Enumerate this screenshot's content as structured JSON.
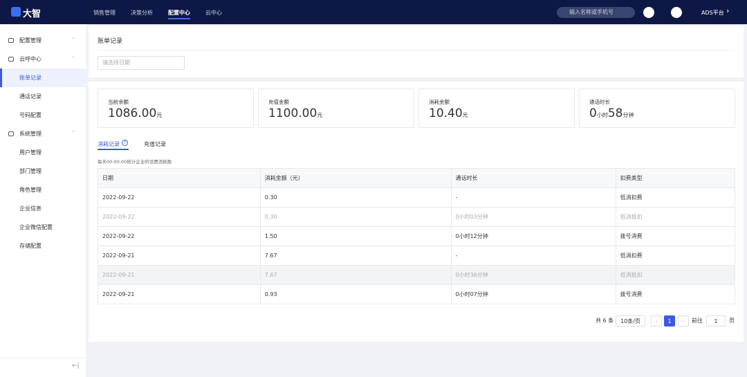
{
  "header": {
    "logo": "大智",
    "nav": [
      "销售管理",
      "决策分析",
      "配置中心",
      "云中心"
    ],
    "search_placeholder": "输入名称或手机号",
    "platform": "ADS平台"
  },
  "sidebar": {
    "groups": [
      {
        "title": "配置管理",
        "items": []
      },
      {
        "title": "云呼中心",
        "items": [
          "账单记录",
          "通话记录",
          "号码配置"
        ]
      },
      {
        "title": "系统管理",
        "items": [
          "用户管理",
          "部门管理",
          "角色管理",
          "企业信息",
          "企业微信配置",
          "存储配置"
        ]
      }
    ]
  },
  "page": {
    "title": "账单记录",
    "date_placeholder": "请选择日期"
  },
  "stats": [
    {
      "label": "当前余额",
      "value": "1086.00",
      "unit": "元"
    },
    {
      "label": "充值金额",
      "value": "1100.00",
      "unit": "元"
    },
    {
      "label": "消耗金额",
      "value": "10.40",
      "unit": "元"
    },
    {
      "label": "通话时长",
      "parts": [
        "0",
        "小时",
        "58",
        "分钟"
      ]
    }
  ],
  "tabs": [
    "消耗记录",
    "充值记录"
  ],
  "note": "每天00:00:00统计企业的话费消耗数",
  "table": {
    "headers": [
      "日期",
      "消耗金额（元）",
      "通话时长",
      "扣费类型"
    ],
    "rows": [
      [
        "2022-09-22",
        "0.30",
        "-",
        "低消扣费"
      ],
      [
        "2022-09-22",
        "0.30",
        "0小时03分钟",
        "低消抵扣"
      ],
      [
        "2022-09-22",
        "1.50",
        "0小时12分钟",
        "拨号消费"
      ],
      [
        "2022-09-21",
        "7.67",
        "-",
        "低消扣费"
      ],
      [
        "2022-09-21",
        "7.67",
        "0小时36分钟",
        "低消抵扣"
      ],
      [
        "2022-09-21",
        "0.93",
        "0小时07分钟",
        "拨号消费"
      ]
    ]
  },
  "pagination": {
    "total": "共 6 条",
    "page_size": "10条/页",
    "current": "1",
    "goto": "前往",
    "goto_value": "1",
    "page_unit": "页"
  }
}
